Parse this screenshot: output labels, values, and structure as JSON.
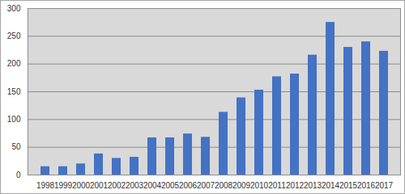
{
  "chart_data": {
    "type": "bar",
    "categories": [
      "1998",
      "1999",
      "2000",
      "2001",
      "2002",
      "2003",
      "2004",
      "2005",
      "2006",
      "2007",
      "2008",
      "2009",
      "2010",
      "2011",
      "2012",
      "2013",
      "2014",
      "2015",
      "2016",
      "2017"
    ],
    "values": [
      15,
      15,
      20,
      38,
      30,
      32,
      67,
      67,
      74,
      68,
      113,
      139,
      153,
      177,
      182,
      216,
      275,
      230,
      240,
      223
    ],
    "color": "#4472c4",
    "ylim": [
      0,
      300
    ],
    "yticks": [
      0,
      50,
      100,
      150,
      200,
      250,
      300
    ],
    "grid": true
  }
}
